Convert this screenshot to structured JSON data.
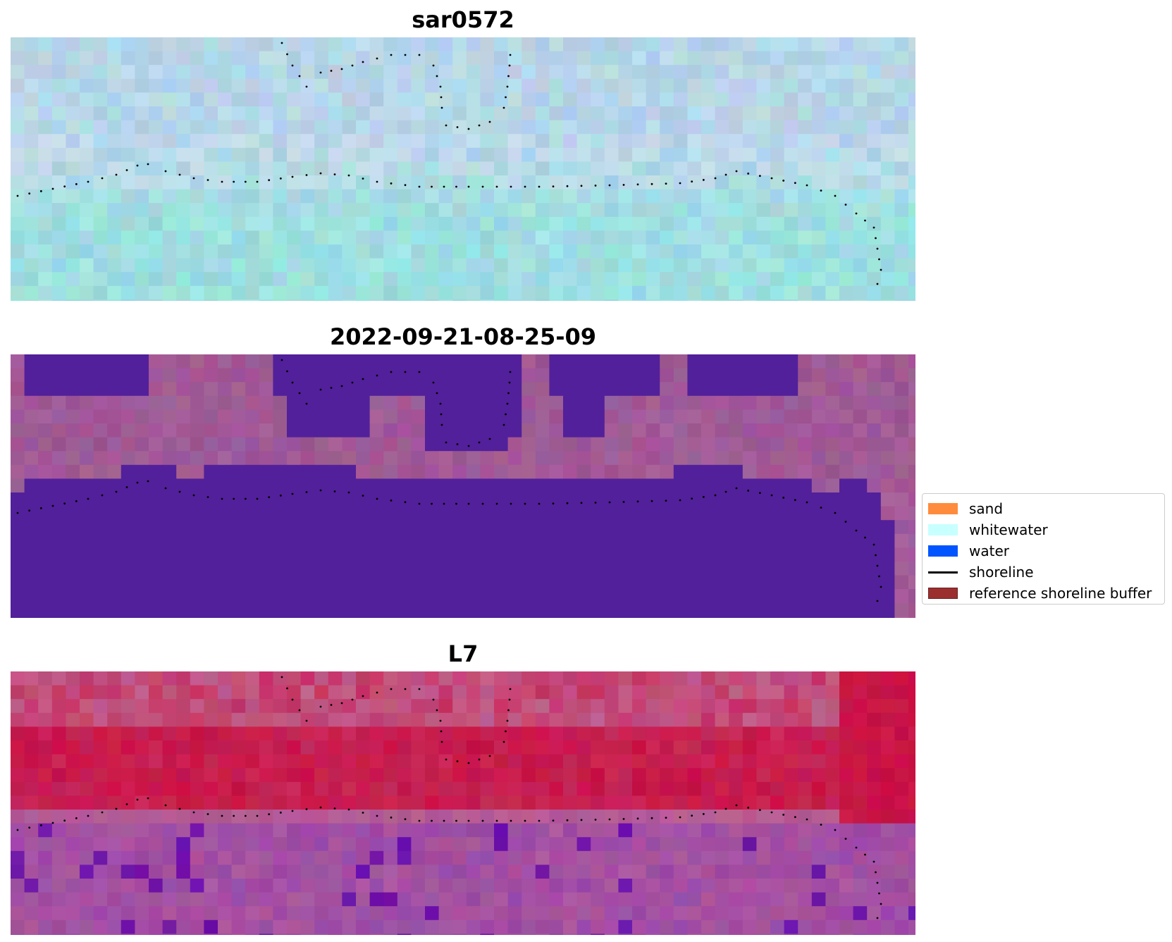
{
  "panels": [
    {
      "title": "sar0572",
      "style": "sar"
    },
    {
      "title": "2022-09-21-08-25-09",
      "style": "classified"
    },
    {
      "title": "L7",
      "style": "landsat"
    }
  ],
  "legend": {
    "items": [
      {
        "label": "sand",
        "color": "#ff8c3c",
        "kind": "patch"
      },
      {
        "label": "whitewater",
        "color": "#c8ffff",
        "kind": "patch"
      },
      {
        "label": "water",
        "color": "#0055ff",
        "kind": "patch"
      },
      {
        "label": "shoreline",
        "color": "#000000",
        "kind": "line"
      },
      {
        "label": "reference shoreline buffer",
        "color": "#9b2f2f",
        "kind": "patch"
      }
    ]
  },
  "colors": {
    "sar_light": "#b6d6e8",
    "sar_cyan": "#9edfe0",
    "classified_bg": "#a05a96",
    "classified_water": "#52209a",
    "landsat_red": "#c81446",
    "landsat_pink": "#c0628e",
    "landsat_purple": "#9a4aa8"
  }
}
